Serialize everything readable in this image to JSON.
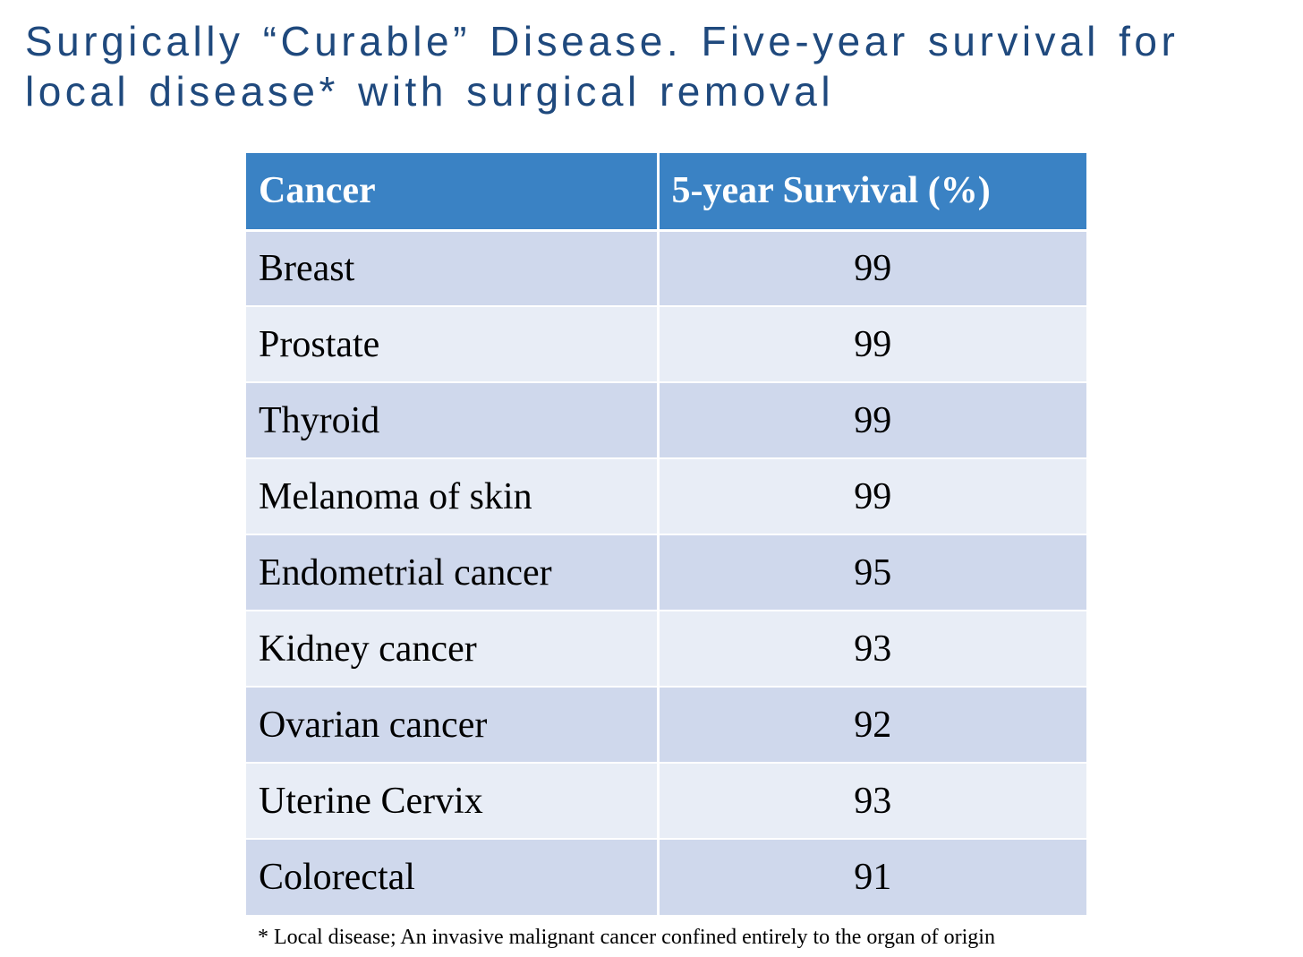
{
  "title": {
    "line1": "Surgically “Curable” Disease. Five-year survival for",
    "line2": "local disease* with surgical removal"
  },
  "table": {
    "headers": [
      "Cancer",
      "5-year Survival (%)"
    ],
    "rows": [
      {
        "cancer": "Breast",
        "survival": "99"
      },
      {
        "cancer": "Prostate",
        "survival": "99"
      },
      {
        "cancer": "Thyroid",
        "survival": "99"
      },
      {
        "cancer": "Melanoma of skin",
        "survival": "99"
      },
      {
        "cancer": "Endometrial cancer",
        "survival": "95"
      },
      {
        "cancer": "Kidney cancer",
        "survival": "93"
      },
      {
        "cancer": "Ovarian cancer",
        "survival": "92"
      },
      {
        "cancer": "Uterine Cervix",
        "survival": "93"
      },
      {
        "cancer": "Colorectal",
        "survival": "91"
      }
    ]
  },
  "footnote": "* Local disease; An invasive malignant cancer confined entirely to the organ of origin",
  "colors": {
    "title_text": "#1f497d",
    "header_bg": "#3a82c4",
    "row_dark": "#cfd8ec",
    "row_light": "#e8edf6"
  }
}
